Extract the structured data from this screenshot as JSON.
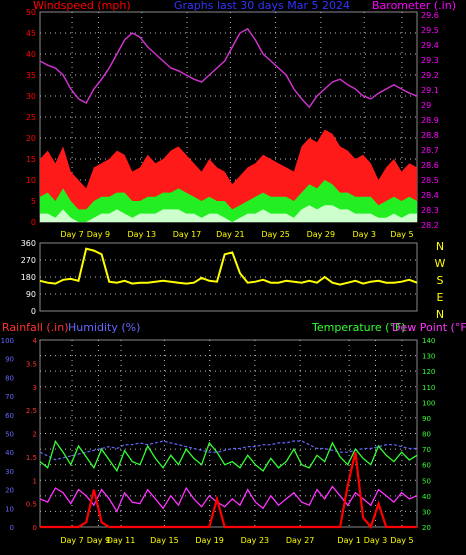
{
  "header": {
    "left_title": "Windspeed (mph)",
    "center_title": "Graphs last 30 days Mar 5 2024",
    "right_title": "Barometer (.in)"
  },
  "colors": {
    "wind_axis": "#ff0000",
    "baro_axis": "#ff00ff",
    "wind_gust": "#ff1a1a",
    "wind_avg": "#22ee22",
    "wind_low": "#ccffcc",
    "barometer": "#cc33cc",
    "direction": "#ffff00",
    "temperature": "#33ff33",
    "dewpoint": "#ff33ff",
    "humidity": "#6666ff",
    "rainfall": "#ff0000",
    "x_labels": "#ffff00",
    "grid": "#bbbbbb",
    "center_title": "#3333ff",
    "temp_axis": "#33ff33",
    "rain_axis": "#ff3333",
    "hum_axis": "#6666ff"
  },
  "x_axis": {
    "wind_labels": [
      "Day 7",
      "Day 9",
      "Day 13",
      "Day 17",
      "Day 21",
      "Day 25",
      "Day 29",
      "Day 3",
      "Day 5"
    ],
    "temp_labels": [
      "Day 7",
      "Day 9",
      "Day 11",
      "Day 15",
      "Day 19",
      "Day 23",
      "Day 27",
      "Day 1",
      "Day 3",
      "Day 5"
    ]
  },
  "direction_letters": [
    "N",
    "W",
    "S",
    "E",
    "N"
  ],
  "lower_header": {
    "rainfall": "Rainfall (.in)",
    "humidity": "Humidity (%)",
    "temperature": "Temperature (°F)",
    "dewpoint": "Dew Point (°F)"
  },
  "chart_data": [
    {
      "type": "area",
      "name_left": "Windspeed (mph)",
      "name_right": "Barometer (.in)",
      "wind_ticks": [
        "50",
        "45",
        "40",
        "35",
        "30",
        "25",
        "20",
        "15",
        "10",
        "5",
        "0"
      ],
      "baro_ticks": [
        "29.6",
        "29.5",
        "29.4",
        "29.3",
        "29.2",
        "29.1",
        "29",
        "28.9",
        "28.8",
        "28.7",
        "28.6",
        "28.5",
        "28.4",
        "28.3",
        "28.2"
      ],
      "wind_ylim": [
        0,
        50
      ],
      "baro_ylim": [
        28.1,
        29.6
      ],
      "barometer": [
        29.25,
        29.22,
        29.2,
        29.15,
        29.05,
        28.98,
        28.95,
        29.05,
        29.12,
        29.2,
        29.3,
        29.4,
        29.45,
        29.42,
        29.35,
        29.3,
        29.25,
        29.2,
        29.18,
        29.15,
        29.12,
        29.1,
        29.15,
        29.2,
        29.25,
        29.35,
        29.45,
        29.48,
        29.4,
        29.3,
        29.25,
        29.2,
        29.15,
        29.05,
        28.98,
        28.92,
        29.0,
        29.05,
        29.1,
        29.12,
        29.08,
        29.05,
        29.0,
        28.98,
        29.02,
        29.05,
        29.08,
        29.05,
        29.02,
        29.0
      ],
      "wind_gust": [
        15,
        17,
        14,
        18,
        12,
        10,
        8,
        13,
        14,
        15,
        17,
        16,
        12,
        13,
        16,
        14,
        15,
        17,
        18,
        16,
        14,
        12,
        15,
        13,
        12,
        9,
        11,
        13,
        14,
        16,
        15,
        14,
        13,
        12,
        18,
        20,
        19,
        22,
        21,
        18,
        17,
        15,
        16,
        14,
        10,
        13,
        15,
        12,
        14,
        13
      ],
      "wind_avg": [
        6,
        7,
        5,
        8,
        5,
        3,
        3,
        5,
        6,
        6,
        7,
        7,
        5,
        5,
        6,
        6,
        7,
        7,
        8,
        7,
        6,
        5,
        6,
        5,
        5,
        3,
        4,
        5,
        6,
        7,
        6,
        6,
        6,
        5,
        7,
        9,
        8,
        10,
        9,
        7,
        7,
        6,
        6,
        6,
        4,
        5,
        6,
        5,
        6,
        5
      ],
      "wind_low": [
        2,
        2,
        1,
        3,
        1,
        0,
        0,
        1,
        2,
        2,
        3,
        2,
        1,
        2,
        2,
        2,
        3,
        3,
        3,
        2,
        2,
        1,
        2,
        2,
        1,
        0,
        1,
        2,
        2,
        3,
        2,
        2,
        2,
        1,
        3,
        4,
        3,
        4,
        4,
        3,
        3,
        2,
        2,
        2,
        1,
        1,
        2,
        1,
        2,
        2
      ]
    },
    {
      "type": "line",
      "name": "Wind direction",
      "ticks": [
        "360",
        "270",
        "180",
        "90",
        "0"
      ],
      "ylim": [
        0,
        360
      ],
      "direction": [
        160,
        150,
        145,
        165,
        170,
        160,
        330,
        320,
        300,
        155,
        150,
        160,
        145,
        150,
        150,
        155,
        160,
        155,
        150,
        145,
        150,
        175,
        160,
        155,
        300,
        310,
        200,
        150,
        155,
        165,
        150,
        150,
        160,
        155,
        150,
        160,
        150,
        180,
        150,
        140,
        150,
        160,
        145,
        155,
        160,
        150,
        150,
        155,
        165,
        150
      ]
    },
    {
      "type": "line",
      "name_left": "Rainfall (.in)",
      "name_left2": "Humidity (%)",
      "name_right": "Temperature (°F)",
      "name_right2": "Dew Point (°F)",
      "humidity_ticks": [
        "100",
        "90",
        "80",
        "70",
        "60",
        "50",
        "40",
        "30",
        "20",
        "10",
        "0"
      ],
      "rain_ticks": [
        "4",
        "3.5",
        "3",
        "2.5",
        "2",
        "1.5",
        "1",
        "0.5",
        "0"
      ],
      "temp_ticks": [
        "140",
        "130",
        "120",
        "110",
        "100",
        "90",
        "80",
        "70",
        "60",
        "50",
        "40",
        "30",
        "20"
      ],
      "temp_ylim": [
        20,
        140
      ],
      "temperature": [
        62,
        58,
        75,
        68,
        60,
        72,
        65,
        58,
        70,
        63,
        56,
        69,
        62,
        60,
        72,
        64,
        58,
        66,
        60,
        70,
        64,
        60,
        74,
        68,
        60,
        62,
        58,
        66,
        60,
        56,
        64,
        58,
        62,
        70,
        60,
        58,
        66,
        62,
        74,
        65,
        60,
        70,
        64,
        60,
        72,
        66,
        62,
        68,
        63,
        66
      ],
      "dewpoint": [
        38,
        36,
        45,
        42,
        35,
        44,
        40,
        34,
        44,
        38,
        30,
        42,
        36,
        35,
        44,
        38,
        32,
        40,
        34,
        45,
        38,
        33,
        40,
        36,
        33,
        38,
        34,
        44,
        36,
        32,
        40,
        34,
        38,
        42,
        36,
        34,
        44,
        38,
        46,
        40,
        34,
        42,
        38,
        34,
        44,
        40,
        36,
        42,
        38,
        40
      ],
      "humidity": [
        40,
        38,
        36,
        37,
        38,
        39,
        40,
        41,
        42,
        43,
        42,
        44,
        44,
        45,
        44,
        45,
        46,
        45,
        44,
        43,
        42,
        41,
        40,
        40,
        41,
        42,
        42,
        43,
        43,
        44,
        44,
        45,
        45,
        46,
        46,
        44,
        42,
        42,
        41,
        40,
        40,
        41,
        42,
        42,
        43,
        44,
        44,
        43,
        42,
        42
      ],
      "rainfall": [
        0,
        0,
        0,
        0,
        0,
        0,
        0.1,
        0.8,
        0.1,
        0,
        0,
        0,
        0,
        0,
        0,
        0,
        0,
        0,
        0,
        0,
        0,
        0,
        0,
        0.6,
        0,
        0,
        0,
        0,
        0,
        0,
        0,
        0,
        0,
        0,
        0,
        0,
        0,
        0,
        0,
        0,
        0.9,
        1.6,
        0.2,
        0,
        0.5,
        0,
        0,
        0,
        0,
        0
      ]
    }
  ]
}
